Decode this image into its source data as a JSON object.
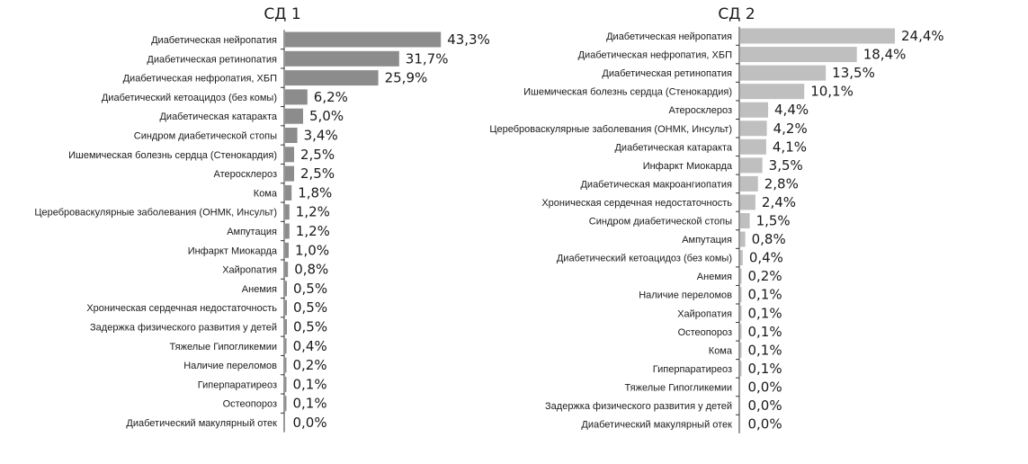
{
  "chart_data": [
    {
      "type": "bar",
      "orientation": "horizontal",
      "title": "СД 1",
      "bar_color": "#8c8c8c",
      "categories": [
        "Диабетическая нейропатия",
        "Диабетическая ретинопатия",
        "Диабетическая нефропатия, ХБП",
        "Диабетический кетоацидоз (без комы)",
        "Диабетическая катаракта",
        "Синдром диабетической стопы",
        "Ишемическая болезнь сердца (Стенокардия)",
        "Атеросклероз",
        "Кома",
        "Цереброваскулярные заболевания (ОНМК, Инсульт)",
        "Ампутация",
        "Инфаркт Миокарда",
        "Хайропатия",
        "Анемия",
        "Хроническая сердечная недостаточность",
        "Задержка физического развития у детей",
        "Тяжелые Гипогликемии",
        "Наличие переломов",
        "Гиперпаратиреоз",
        "Остеопороз",
        "Диабетический макулярный отек"
      ],
      "values": [
        43.3,
        31.7,
        25.9,
        6.2,
        5.0,
        3.4,
        2.5,
        2.5,
        1.8,
        1.2,
        1.2,
        1.0,
        0.8,
        0.5,
        0.5,
        0.5,
        0.4,
        0.2,
        0.1,
        0.1,
        0.0
      ],
      "value_labels": [
        "43,3%",
        "31,7%",
        "25,9%",
        "6,2%",
        "5,0%",
        "3,4%",
        "2,5%",
        "2,5%",
        "1,8%",
        "1,2%",
        "1,2%",
        "1,0%",
        "0,8%",
        "0,5%",
        "0,5%",
        "0,5%",
        "0,4%",
        "0,2%",
        "0,1%",
        "0,1%",
        "0,0%"
      ]
    },
    {
      "type": "bar",
      "orientation": "horizontal",
      "title": "СД 2",
      "bar_color": "#bfbfbf",
      "categories": [
        "Диабетическая нейропатия",
        "Диабетическая нефропатия, ХБП",
        "Диабетическая ретинопатия",
        "Ишемическая болезнь сердца (Стенокардия)",
        "Атеросклероз",
        "Цереброваскулярные заболевания (ОНМК, Инсульт)",
        "Диабетическая катаракта",
        "Инфаркт Миокарда",
        "Диабетическая макроангиопатия",
        "Хроническая сердечная недостаточность",
        "Синдром диабетической стопы",
        "Ампутация",
        "Диабетический кетоацидоз (без комы)",
        "Анемия",
        "Наличие переломов",
        "Хайропатия",
        "Остеопороз",
        "Кома",
        "Гиперпаратиреоз",
        "Тяжелые Гипогликемии",
        "Задержка физического развития у детей",
        "Диабетический макулярный отек"
      ],
      "values": [
        24.4,
        18.4,
        13.5,
        10.1,
        4.4,
        4.2,
        4.1,
        3.5,
        2.8,
        2.4,
        1.5,
        0.8,
        0.4,
        0.2,
        0.1,
        0.1,
        0.1,
        0.1,
        0.1,
        0.0,
        0.0,
        0.0
      ],
      "value_labels": [
        "24,4%",
        "18,4%",
        "13,5%",
        "10,1%",
        "4,4%",
        "4,2%",
        "4,1%",
        "3,5%",
        "2,8%",
        "2,4%",
        "1,5%",
        "0,8%",
        "0,4%",
        "0,2%",
        "0,1%",
        "0,1%",
        "0,1%",
        "0,1%",
        "0,1%",
        "0,0%",
        "0,0%",
        "0,0%"
      ]
    }
  ]
}
